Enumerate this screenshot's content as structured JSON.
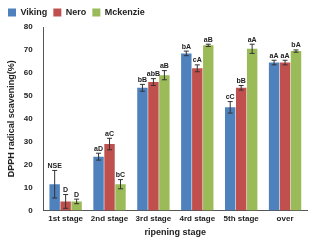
{
  "chart_data": {
    "type": "bar",
    "x_label": "ripening stage",
    "y_label": "DPPH radical scavening(%)",
    "categories": [
      "1st stage",
      "2nd stage",
      "3rd stage",
      "4rd stage",
      "5th stage",
      "over"
    ],
    "series": [
      {
        "name": "Viking",
        "color": "#4f81bd",
        "values": [
          11.5,
          23.5,
          53.5,
          68.5,
          45,
          64.5
        ],
        "errors": [
          6,
          1.5,
          1.5,
          1,
          2.5,
          1
        ],
        "annotations": [
          "NSE",
          "aD",
          "bB",
          "bA",
          "cC",
          "aA"
        ]
      },
      {
        "name": "Nero",
        "color": "#c0504d",
        "values": [
          4,
          29,
          56,
          62,
          53.5,
          64.5
        ],
        "errors": [
          3,
          2.5,
          1.5,
          1.5,
          1,
          1
        ],
        "annotations": [
          "D",
          "aC",
          "abB",
          "cA",
          "bB",
          "aA"
        ]
      },
      {
        "name": "Mckenzie",
        "color": "#9bbb59",
        "values": [
          4,
          11.5,
          59,
          72,
          70.5,
          69.5
        ],
        "errors": [
          1,
          2,
          2,
          0.5,
          2,
          0.5
        ],
        "annotations": [
          "D",
          "bC",
          "aB",
          "aB",
          "aA",
          "bA"
        ]
      }
    ],
    "ylim": [
      0,
      80
    ],
    "yticks": [
      0,
      10,
      20,
      30,
      40,
      50,
      60,
      70,
      80
    ],
    "grid": false,
    "legend": "upper left"
  }
}
